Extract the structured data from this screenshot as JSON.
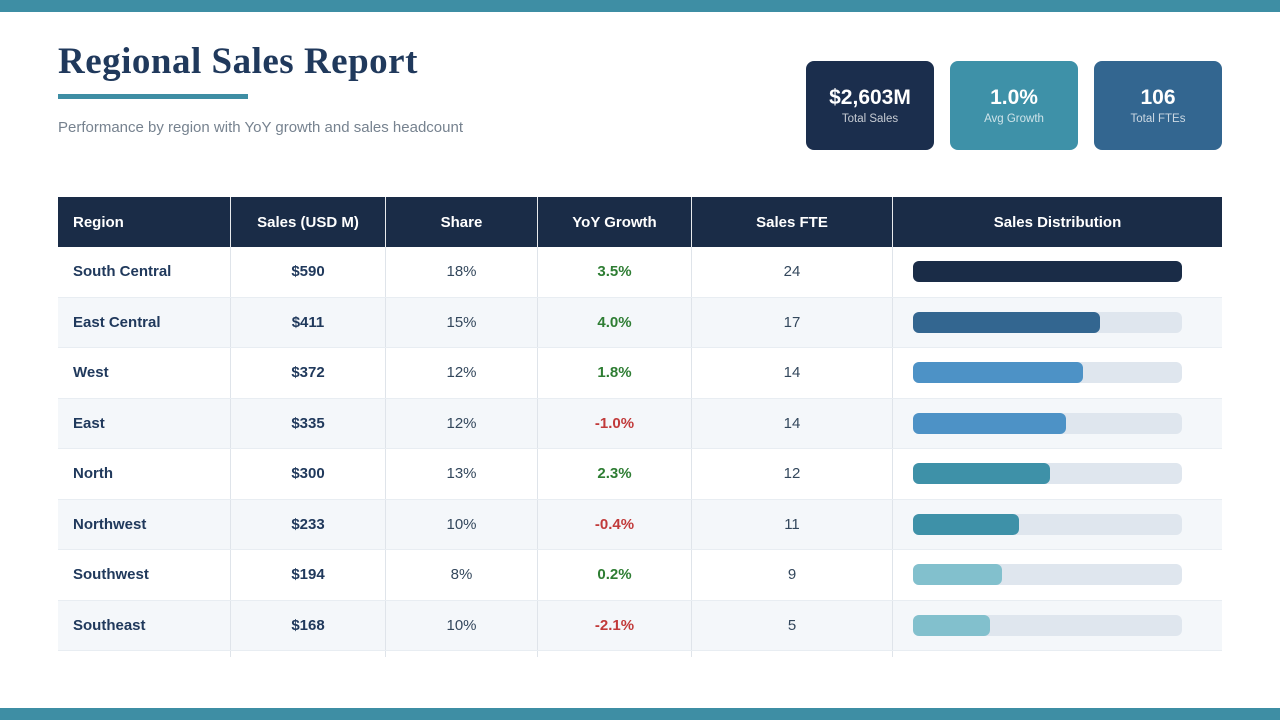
{
  "page": {
    "title": "Regional Sales Report",
    "subtitle": "Performance by region with YoY growth and sales headcount",
    "accent_teal": "#3e8ea4",
    "navy": "#1a2c47"
  },
  "kpis": [
    {
      "value": "$2,603M",
      "label": "Total Sales",
      "bg": "#1b2e4d"
    },
    {
      "value": "1.0%",
      "label": "Avg Growth",
      "bg": "#3e91a8"
    },
    {
      "value": "106",
      "label": "Total FTEs",
      "bg": "#336690"
    }
  ],
  "table": {
    "header_bg": "#1a2c47",
    "headers": [
      "Region",
      "Sales (USD M)",
      "Share",
      "YoY Growth",
      "Sales FTE",
      "Sales Distribution"
    ],
    "positive_color": "#2e7d33",
    "negative_color": "#c13a3a",
    "rows": [
      {
        "region": "South Central",
        "sales": "$590",
        "share": "18%",
        "yoy": "3.5%",
        "yoy_color": "#2e7d33",
        "fte": "24",
        "bar_width": "100%",
        "bar_color": "#1a2c47"
      },
      {
        "region": "East Central",
        "sales": "$411",
        "share": "15%",
        "yoy": "4.0%",
        "yoy_color": "#2e7d33",
        "fte": "17",
        "bar_width": "69.7%",
        "bar_color": "#336690"
      },
      {
        "region": "West",
        "sales": "$372",
        "share": "12%",
        "yoy": "1.8%",
        "yoy_color": "#2e7d33",
        "fte": "14",
        "bar_width": "63.1%",
        "bar_color": "#4d92c6"
      },
      {
        "region": "East",
        "sales": "$335",
        "share": "12%",
        "yoy": "-1.0%",
        "yoy_color": "#c13a3a",
        "fte": "14",
        "bar_width": "56.8%",
        "bar_color": "#4d92c6"
      },
      {
        "region": "North",
        "sales": "$300",
        "share": "13%",
        "yoy": "2.3%",
        "yoy_color": "#2e7d33",
        "fte": "12",
        "bar_width": "50.8%",
        "bar_color": "#3e91a8"
      },
      {
        "region": "Northwest",
        "sales": "$233",
        "share": "10%",
        "yoy": "-0.4%",
        "yoy_color": "#c13a3a",
        "fte": "11",
        "bar_width": "39.5%",
        "bar_color": "#3e91a8"
      },
      {
        "region": "Southwest",
        "sales": "$194",
        "share": "8%",
        "yoy": "0.2%",
        "yoy_color": "#2e7d33",
        "fte": "9",
        "bar_width": "32.9%",
        "bar_color": "#82c0cd"
      },
      {
        "region": "Southeast",
        "sales": "$168",
        "share": "10%",
        "yoy": "-2.1%",
        "yoy_color": "#c13a3a",
        "fte": "5",
        "bar_width": "28.5%",
        "bar_color": "#82c0cd"
      }
    ]
  },
  "chart_data": {
    "type": "table",
    "title": "Regional Sales Report",
    "columns": [
      "Region",
      "Sales (USD M)",
      "Share",
      "YoY Growth",
      "Sales FTE",
      "Sales Distribution"
    ],
    "rows": [
      {
        "region": "South Central",
        "sales_usd_m": 590,
        "share_pct": 18,
        "yoy_growth_pct": 3.5,
        "sales_fte": 24,
        "bar_fill_fraction": 1.0
      },
      {
        "region": "East Central",
        "sales_usd_m": 411,
        "share_pct": 15,
        "yoy_growth_pct": 4.0,
        "sales_fte": 17,
        "bar_fill_fraction": 0.697
      },
      {
        "region": "West",
        "sales_usd_m": 372,
        "share_pct": 12,
        "yoy_growth_pct": 1.8,
        "sales_fte": 14,
        "bar_fill_fraction": 0.631
      },
      {
        "region": "East",
        "sales_usd_m": 335,
        "share_pct": 12,
        "yoy_growth_pct": -1.0,
        "sales_fte": 14,
        "bar_fill_fraction": 0.568
      },
      {
        "region": "North",
        "sales_usd_m": 300,
        "share_pct": 13,
        "yoy_growth_pct": 2.3,
        "sales_fte": 12,
        "bar_fill_fraction": 0.508
      },
      {
        "region": "Northwest",
        "sales_usd_m": 233,
        "share_pct": 10,
        "yoy_growth_pct": -0.4,
        "sales_fte": 11,
        "bar_fill_fraction": 0.395
      },
      {
        "region": "Southwest",
        "sales_usd_m": 194,
        "share_pct": 8,
        "yoy_growth_pct": 0.2,
        "sales_fte": 9,
        "bar_fill_fraction": 0.329
      },
      {
        "region": "Southeast",
        "sales_usd_m": 168,
        "share_pct": 10,
        "yoy_growth_pct": -2.1,
        "sales_fte": 5,
        "bar_fill_fraction": 0.285
      }
    ],
    "kpis": [
      {
        "label": "Total Sales",
        "value": "$2,603M"
      },
      {
        "label": "Avg Growth",
        "value": "1.0%"
      },
      {
        "label": "Total FTEs",
        "value": "106"
      }
    ]
  }
}
